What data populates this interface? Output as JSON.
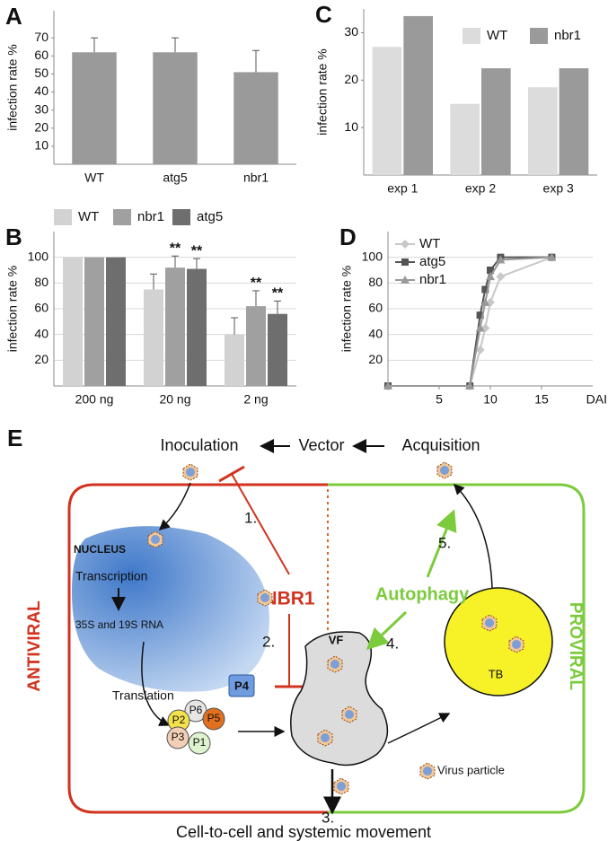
{
  "chart_data": [
    {
      "type": "bar",
      "panel": "A",
      "ylabel": "infection rate %",
      "categories": [
        "WT",
        "atg5",
        "nbr1"
      ],
      "values": [
        62,
        62,
        51
      ],
      "errors": [
        8,
        8,
        12
      ],
      "color": "#9a9a9a",
      "ylim": [
        0,
        85
      ],
      "yticks": [
        10,
        20,
        30,
        40,
        50,
        60,
        70
      ],
      "grid": false
    },
    {
      "type": "bar",
      "panel": "B",
      "ylabel": "infection rate %",
      "categories": [
        "200 ng",
        "20 ng",
        "2 ng"
      ],
      "series": [
        {
          "name": "WT",
          "color": "#d2d2d2",
          "values": [
            100,
            75,
            40
          ],
          "errors": [
            null,
            12,
            13
          ]
        },
        {
          "name": "nbr1",
          "color": "#a0a0a0",
          "values": [
            100,
            92,
            62
          ],
          "errors": [
            null,
            9,
            12
          ],
          "annotations": [
            null,
            "**",
            "**"
          ]
        },
        {
          "name": "atg5",
          "color": "#6e6e6e",
          "values": [
            100,
            91,
            56
          ],
          "errors": [
            null,
            8,
            10
          ],
          "annotations": [
            null,
            "**",
            "**"
          ]
        }
      ],
      "ylim": [
        0,
        120
      ],
      "yticks": [
        20,
        40,
        60,
        80,
        100
      ],
      "grid": true,
      "legend": "top"
    },
    {
      "type": "bar",
      "panel": "C",
      "ylabel": "infection rate %",
      "categories": [
        "exp 1",
        "exp 2",
        "exp 3"
      ],
      "series": [
        {
          "name": "WT",
          "color": "#dcdcdc",
          "values": [
            27,
            15,
            18.5
          ]
        },
        {
          "name": "nbr1",
          "color": "#9a9a9a",
          "values": [
            33.5,
            22.5,
            22.5
          ]
        }
      ],
      "ylim": [
        0,
        35
      ],
      "yticks": [
        10,
        20,
        30
      ],
      "grid": false,
      "legend": "top-right"
    },
    {
      "type": "line",
      "panel": "D",
      "ylabel": "infection rate %",
      "xlabel": "DAI",
      "x": [
        0,
        8,
        9,
        9.5,
        10,
        11,
        16
      ],
      "series": [
        {
          "name": "WT",
          "color": "#c8c8c8",
          "marker": "diamond",
          "values": [
            0,
            0,
            28,
            45,
            65,
            85,
            100
          ]
        },
        {
          "name": "atg5",
          "color": "#555555",
          "marker": "square",
          "values": [
            0,
            0,
            55,
            75,
            90,
            100,
            100
          ]
        },
        {
          "name": "nbr1",
          "color": "#999999",
          "marker": "triangle",
          "values": [
            0,
            0,
            45,
            65,
            85,
            98,
            100
          ]
        }
      ],
      "xlim": [
        0,
        20
      ],
      "xticks": [
        5,
        10,
        15
      ],
      "ylim": [
        0,
        120
      ],
      "yticks": [
        20,
        40,
        60,
        80,
        100
      ],
      "grid": true,
      "legend": "top-left"
    }
  ],
  "diagram": {
    "label": "E",
    "inoculation": "Inoculation",
    "vector": "Vector",
    "acquisition": "Acquisition",
    "nucleus": "NUCLEUS",
    "transcription": "Transcription",
    "rna": "35S and 19S RNA",
    "translation": "Translation",
    "nbr1": "NBR1",
    "step1": "1.",
    "step2": "2.",
    "step3": "3.",
    "step4": "4.",
    "step5": "5.",
    "p4": "P4",
    "vf": "VF",
    "autophagy": "Autophagy",
    "tb": "TB",
    "antiviral": "ANTIVIRAL",
    "proviral": "PROVIRAL",
    "proteins": [
      "P6",
      "P5",
      "P2",
      "P3",
      "P1"
    ],
    "virus_particle": "Virus particle",
    "movement": "Cell-to-cell and systemic movement"
  }
}
